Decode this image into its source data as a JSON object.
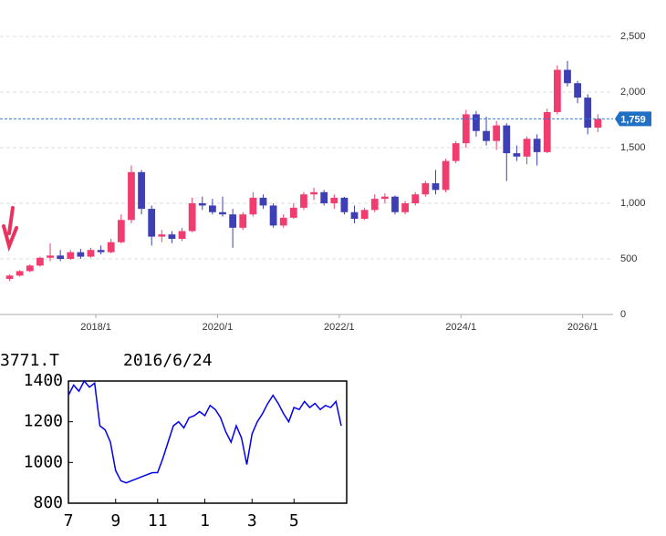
{
  "chart_data": [
    {
      "type": "candlestick",
      "x": [
        "2016/7",
        "2016/9",
        "2016/11",
        "2017/1",
        "2017/3",
        "2017/5",
        "2017/7",
        "2017/9",
        "2017/11",
        "2018/1",
        "2018/3",
        "2018/5",
        "2018/7",
        "2018/9",
        "2018/11",
        "2019/1",
        "2019/3",
        "2019/5",
        "2019/7",
        "2019/9",
        "2019/11",
        "2020/1",
        "2020/3",
        "2020/5",
        "2020/7",
        "2020/9",
        "2020/11",
        "2021/1",
        "2021/3",
        "2021/5",
        "2021/7",
        "2021/9",
        "2021/11",
        "2022/1",
        "2022/3",
        "2022/5",
        "2022/7",
        "2022/9",
        "2022/11",
        "2023/1",
        "2023/3",
        "2023/5",
        "2023/7",
        "2023/9",
        "2023/11",
        "2024/1",
        "2024/3",
        "2024/5",
        "2024/7",
        "2024/9",
        "2024/11",
        "2025/1",
        "2025/3",
        "2025/5",
        "2025/7",
        "2025/9",
        "2025/11",
        "2026/1",
        "2026/3"
      ],
      "open": [
        320,
        350,
        390,
        440,
        510,
        530,
        500,
        560,
        520,
        580,
        560,
        650,
        850,
        1280,
        950,
        700,
        720,
        680,
        750,
        1000,
        980,
        920,
        900,
        780,
        900,
        1050,
        980,
        800,
        870,
        960,
        1080,
        1100,
        1000,
        1050,
        920,
        860,
        940,
        1040,
        1060,
        920,
        1000,
        1080,
        1180,
        1120,
        1380,
        1540,
        1800,
        1650,
        1560,
        1700,
        1450,
        1420,
        1580,
        1460,
        1820,
        2200,
        2080,
        1950,
        1680
      ],
      "high": [
        360,
        400,
        450,
        520,
        640,
        580,
        580,
        590,
        600,
        620,
        680,
        900,
        1340,
        1300,
        980,
        760,
        750,
        780,
        1050,
        1060,
        1040,
        1060,
        950,
        920,
        1100,
        1080,
        1000,
        900,
        1000,
        1100,
        1140,
        1120,
        1080,
        1060,
        980,
        960,
        1080,
        1090,
        1070,
        1020,
        1100,
        1200,
        1300,
        1400,
        1560,
        1840,
        1830,
        1780,
        1740,
        1720,
        1520,
        1600,
        1620,
        1850,
        2240,
        2280,
        2100,
        1980,
        1800
      ],
      "low": [
        300,
        340,
        380,
        430,
        480,
        480,
        490,
        500,
        510,
        540,
        550,
        640,
        820,
        900,
        620,
        650,
        640,
        660,
        740,
        940,
        900,
        880,
        600,
        760,
        880,
        950,
        780,
        780,
        860,
        940,
        1030,
        980,
        950,
        900,
        820,
        850,
        920,
        1000,
        900,
        900,
        980,
        1060,
        1080,
        1100,
        1360,
        1500,
        1600,
        1520,
        1480,
        1200,
        1380,
        1350,
        1340,
        1450,
        1800,
        2050,
        1900,
        1620,
        1640
      ],
      "close": [
        350,
        390,
        440,
        510,
        530,
        500,
        560,
        520,
        580,
        560,
        650,
        850,
        1280,
        950,
        700,
        720,
        680,
        750,
        1000,
        980,
        920,
        900,
        780,
        900,
        1050,
        980,
        800,
        870,
        960,
        1080,
        1100,
        1000,
        1050,
        920,
        860,
        940,
        1040,
        1060,
        920,
        1000,
        1080,
        1180,
        1120,
        1380,
        1540,
        1800,
        1650,
        1560,
        1700,
        1450,
        1420,
        1580,
        1460,
        1820,
        2200,
        2080,
        1950,
        1680,
        1759
      ],
      "up_color": "#f03c6e",
      "down_color": "#3f3fb5",
      "xlim": [
        "2016/7",
        "2026/7"
      ],
      "xticks": [
        "2018/1",
        "2020/1",
        "2022/1",
        "2024/1",
        "2026/1"
      ],
      "ylim": [
        0,
        2500
      ],
      "yticks": [
        {
          "value": 2500,
          "label": "2,500"
        },
        {
          "value": 2000,
          "label": "2,000"
        },
        {
          "value": 1500,
          "label": "1,500"
        },
        {
          "value": 1000,
          "label": "1,000"
        },
        500,
        0
      ],
      "last_price": {
        "value": 1759,
        "label": "1,759"
      },
      "grid": true
    },
    {
      "type": "line",
      "title": "3771.T",
      "subtitle": "2016/6/24",
      "categories": [
        "7",
        null,
        null,
        null,
        null,
        null,
        null,
        null,
        null,
        "9",
        null,
        null,
        null,
        null,
        null,
        null,
        null,
        "11",
        null,
        null,
        null,
        null,
        null,
        null,
        null,
        null,
        "1",
        null,
        null,
        null,
        null,
        null,
        null,
        null,
        null,
        "3",
        null,
        null,
        null,
        null,
        null,
        null,
        null,
        "5",
        null,
        null,
        null,
        null,
        null,
        null,
        null,
        null,
        null
      ],
      "values": [
        1330,
        1380,
        1350,
        1400,
        1370,
        1390,
        1180,
        1160,
        1100,
        960,
        910,
        900,
        910,
        920,
        930,
        940,
        950,
        950,
        1020,
        1100,
        1180,
        1200,
        1170,
        1220,
        1230,
        1250,
        1230,
        1280,
        1260,
        1220,
        1150,
        1100,
        1180,
        1120,
        990,
        1140,
        1200,
        1240,
        1290,
        1330,
        1290,
        1240,
        1200,
        1270,
        1260,
        1300,
        1270,
        1290,
        1260,
        1280,
        1270,
        1300,
        1180
      ],
      "color": "#0000ee",
      "ylim": [
        800,
        1400
      ],
      "yticks": [
        1400,
        1200,
        1000,
        800
      ]
    }
  ]
}
